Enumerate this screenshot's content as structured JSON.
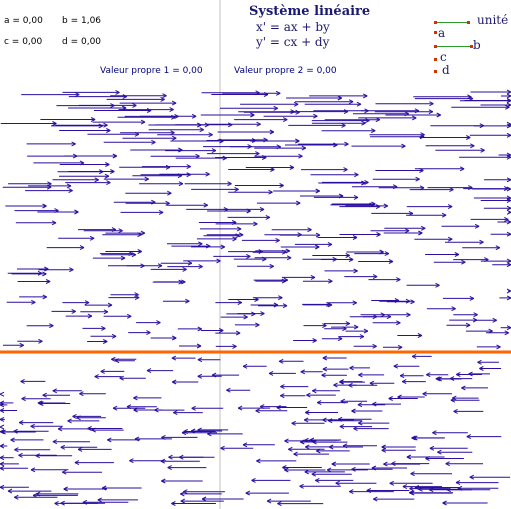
{
  "params": {
    "a": "a = 0,00",
    "b": "b = 1,06",
    "c": "c = 0,00",
    "d": "d = 0,00"
  },
  "title": "Système linéaire",
  "equations": {
    "x": "x' = ax + by",
    "y": "y' = cx + dy"
  },
  "eigen": {
    "v1": "Valeur propre 1 =  0,00",
    "v2": "Valeur propre 2 =  0,00"
  },
  "legend": {
    "unit": "unité",
    "a": "a",
    "b": "b",
    "c": "c",
    "d": "d"
  },
  "colors": {
    "arrow": "#2a0fa0",
    "eigen_line": "#ff6600",
    "axis": "#c0c0c0",
    "handle": "#d43000",
    "handle_line": "#2a9a2a"
  }
}
